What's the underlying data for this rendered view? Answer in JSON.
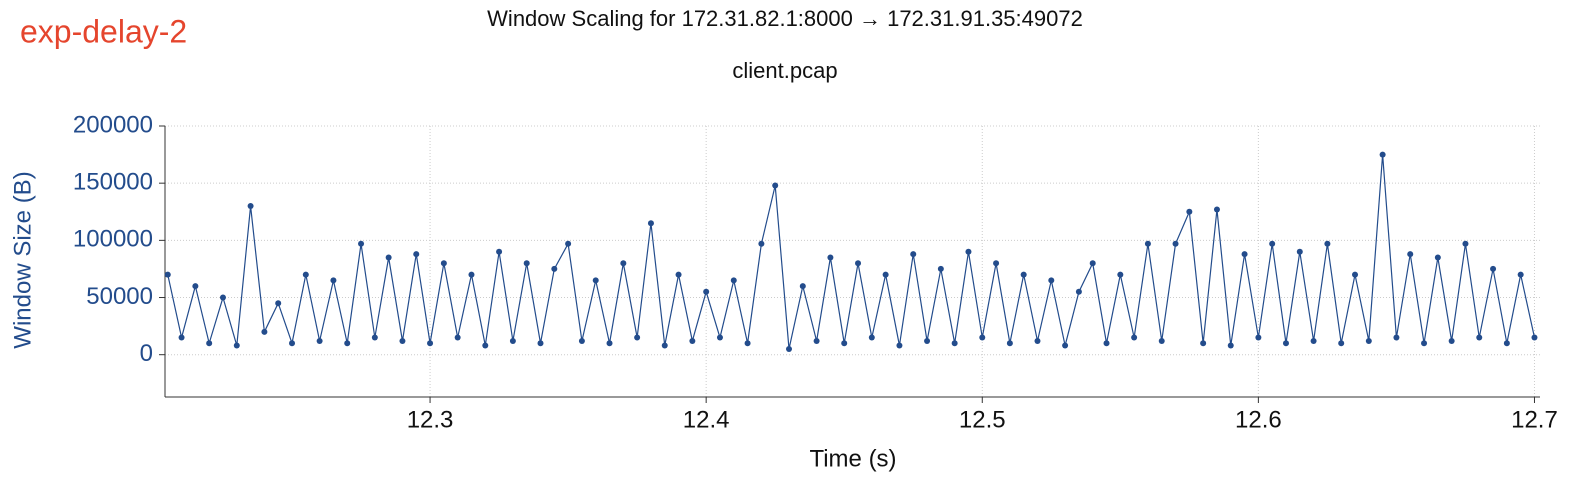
{
  "corner_label": "exp-delay-2",
  "chart_data": {
    "type": "line",
    "title": "Window Scaling for 172.31.82.1:8000 → 172.31.91.35:49072",
    "subtitle": "client.pcap",
    "x_label": "Time (s)",
    "y_label": "Window Size (B)",
    "xlim": [
      12.204,
      12.702
    ],
    "ylim": [
      -37000,
      200000
    ],
    "xticks": [
      12.3,
      12.4,
      12.5,
      12.6,
      12.7
    ],
    "yticks": [
      0,
      50000,
      100000,
      150000,
      200000
    ],
    "grid": true,
    "markers": true,
    "x": [
      12.205,
      12.21,
      12.215,
      12.22,
      12.225,
      12.23,
      12.235,
      12.24,
      12.245,
      12.25,
      12.255,
      12.26,
      12.265,
      12.27,
      12.275,
      12.28,
      12.285,
      12.29,
      12.295,
      12.3,
      12.305,
      12.31,
      12.315,
      12.32,
      12.325,
      12.33,
      12.335,
      12.34,
      12.345,
      12.35,
      12.355,
      12.36,
      12.365,
      12.37,
      12.375,
      12.38,
      12.385,
      12.39,
      12.395,
      12.4,
      12.405,
      12.41,
      12.415,
      12.42,
      12.425,
      12.43,
      12.435,
      12.44,
      12.445,
      12.45,
      12.455,
      12.46,
      12.465,
      12.47,
      12.475,
      12.48,
      12.485,
      12.49,
      12.495,
      12.5,
      12.505,
      12.51,
      12.515,
      12.52,
      12.525,
      12.53,
      12.535,
      12.54,
      12.545,
      12.55,
      12.555,
      12.56,
      12.565,
      12.57,
      12.575,
      12.58,
      12.585,
      12.59,
      12.595,
      12.6,
      12.605,
      12.61,
      12.615,
      12.62,
      12.625,
      12.63,
      12.635,
      12.64,
      12.645,
      12.65,
      12.655,
      12.66,
      12.665,
      12.67,
      12.675,
      12.68,
      12.685,
      12.69,
      12.695,
      12.7
    ],
    "series": [
      {
        "name": "Window Size",
        "color": "#234c8c",
        "values": [
          70000,
          15000,
          60000,
          10000,
          50000,
          8000,
          130000,
          20000,
          45000,
          10000,
          70000,
          12000,
          65000,
          10000,
          97000,
          15000,
          85000,
          12000,
          88000,
          10000,
          80000,
          15000,
          70000,
          8000,
          90000,
          12000,
          80000,
          10000,
          75000,
          97000,
          12000,
          65000,
          10000,
          80000,
          15000,
          115000,
          8000,
          70000,
          12000,
          55000,
          15000,
          65000,
          10000,
          97000,
          148000,
          5000,
          60000,
          12000,
          85000,
          10000,
          80000,
          15000,
          70000,
          8000,
          88000,
          12000,
          75000,
          10000,
          90000,
          15000,
          80000,
          10000,
          70000,
          12000,
          65000,
          8000,
          55000,
          80000,
          10000,
          70000,
          15000,
          97000,
          12000,
          97000,
          125000,
          10000,
          127000,
          8000,
          88000,
          15000,
          97000,
          10000,
          90000,
          12000,
          97000,
          10000,
          70000,
          12000,
          175000,
          15000,
          88000,
          10000,
          85000,
          12000,
          97000,
          15000,
          75000,
          10000,
          70000,
          15000
        ]
      }
    ]
  }
}
